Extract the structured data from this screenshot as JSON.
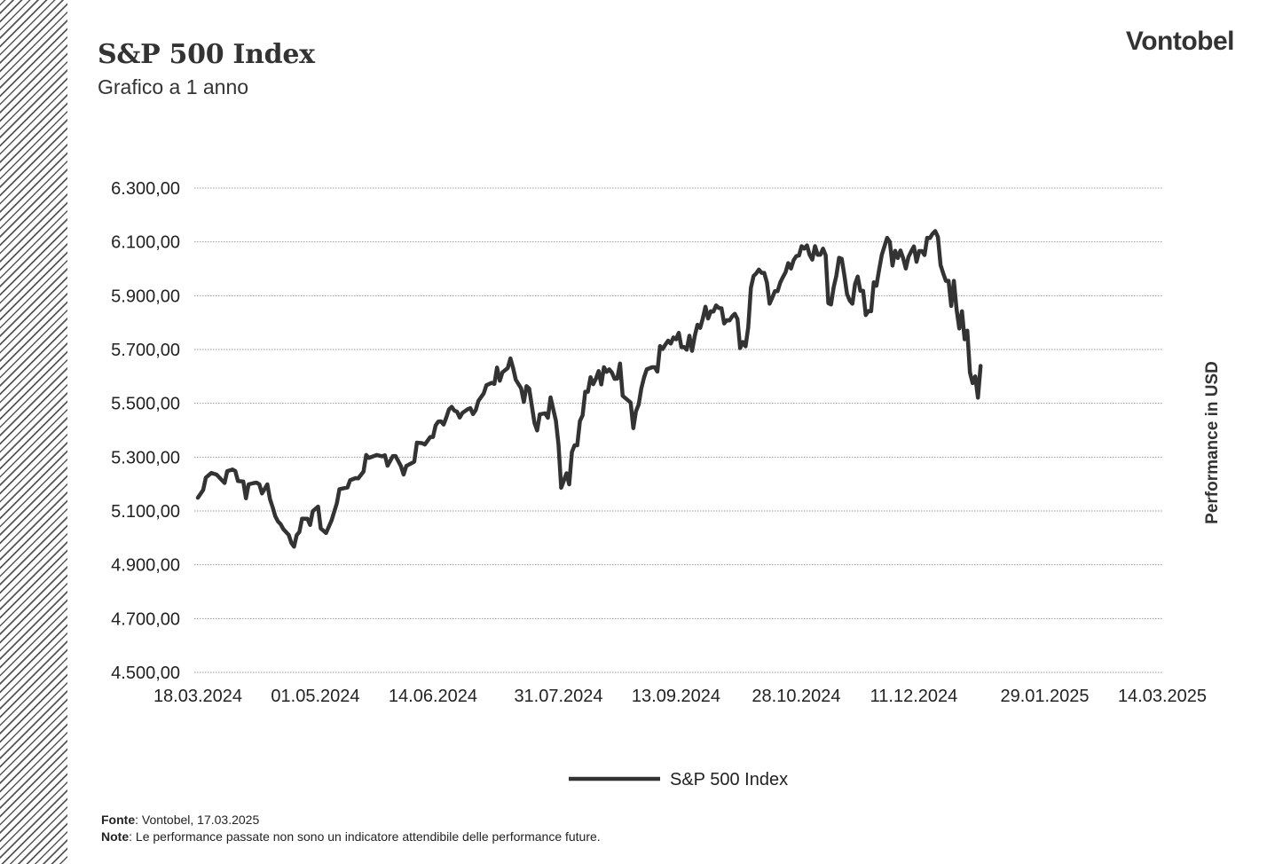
{
  "header": {
    "title": "S&P 500 Index",
    "subtitle": "Grafico a 1 anno",
    "brand": "Vontobel"
  },
  "footer": {
    "source_label": "Fonte",
    "source_text": ": Vontobel, 17.03.2025",
    "note_label": "Note",
    "note_text": ": Le performance passate non sono un indicatore attendibile delle performance future."
  },
  "colors": {
    "line": "#333333",
    "grid": "#9a9a9a",
    "text": "#222222"
  },
  "chart_data": {
    "type": "line",
    "title": "S&P 500 Index",
    "xlabel": "",
    "ylabel": "Performance in USD",
    "ylim": [
      4500,
      6300
    ],
    "y_ticks": [
      4500,
      4700,
      4900,
      5100,
      5300,
      5500,
      5700,
      5900,
      6100,
      6300
    ],
    "y_tick_labels": [
      "4.500,00",
      "4.700,00",
      "4.900,00",
      "5.100,00",
      "5.300,00",
      "5.500,00",
      "5.700,00",
      "5.900,00",
      "6.100,00",
      "6.300,00"
    ],
    "x_tick_labels": [
      "18.03.2024",
      "01.05.2024",
      "14.06.2024",
      "31.07.2024",
      "13.09.2024",
      "28.10.2024",
      "11.12.2024",
      "29.01.2025",
      "14.03.2025"
    ],
    "x_ticks_day": [
      0,
      44,
      88,
      135,
      179,
      224,
      268,
      317,
      361
    ],
    "grid": true,
    "legend": {
      "position": "bottom-center",
      "entries": [
        "S&P 500 Index"
      ]
    },
    "series": [
      {
        "name": "S&P 500 Index",
        "points": [
          [
            0,
            5149
          ],
          [
            2,
            5178
          ],
          [
            3,
            5224
          ],
          [
            5,
            5241
          ],
          [
            7,
            5235
          ],
          [
            10,
            5204
          ],
          [
            11,
            5248
          ],
          [
            13,
            5254
          ],
          [
            14,
            5248
          ],
          [
            15,
            5211
          ],
          [
            17,
            5209
          ],
          [
            18,
            5147
          ],
          [
            19,
            5199
          ],
          [
            21,
            5204
          ],
          [
            22,
            5205
          ],
          [
            23,
            5199
          ],
          [
            24,
            5165
          ],
          [
            26,
            5199
          ],
          [
            27,
            5144
          ],
          [
            28,
            5114
          ],
          [
            29,
            5080
          ],
          [
            30,
            5061
          ],
          [
            31,
            5051
          ],
          [
            32,
            5032
          ],
          [
            34,
            5011
          ],
          [
            35,
            4981
          ],
          [
            36,
            4967
          ],
          [
            37,
            5010
          ],
          [
            38,
            5022
          ],
          [
            39,
            5071
          ],
          [
            41,
            5071
          ],
          [
            42,
            5048
          ],
          [
            43,
            5099
          ],
          [
            45,
            5116
          ],
          [
            46,
            5035
          ],
          [
            48,
            5018
          ],
          [
            50,
            5064
          ],
          [
            52,
            5128
          ],
          [
            53,
            5181
          ],
          [
            56,
            5187
          ],
          [
            57,
            5214
          ],
          [
            59,
            5222
          ],
          [
            60,
            5221
          ],
          [
            62,
            5246
          ],
          [
            63,
            5308
          ],
          [
            64,
            5297
          ],
          [
            67,
            5308
          ],
          [
            69,
            5303
          ],
          [
            70,
            5307
          ],
          [
            71,
            5268
          ],
          [
            73,
            5304
          ],
          [
            74,
            5304
          ],
          [
            76,
            5267
          ],
          [
            77,
            5235
          ],
          [
            78,
            5267
          ],
          [
            81,
            5283
          ],
          [
            82,
            5354
          ],
          [
            84,
            5352
          ],
          [
            85,
            5347
          ],
          [
            87,
            5375
          ],
          [
            88,
            5375
          ],
          [
            89,
            5418
          ],
          [
            90,
            5432
          ],
          [
            91,
            5433
          ],
          [
            92,
            5421
          ],
          [
            93,
            5447
          ],
          [
            94,
            5477
          ],
          [
            95,
            5487
          ],
          [
            96,
            5473
          ],
          [
            97,
            5469
          ],
          [
            98,
            5447
          ],
          [
            99,
            5464
          ],
          [
            101,
            5478
          ],
          [
            102,
            5482
          ],
          [
            103,
            5460
          ],
          [
            104,
            5475
          ],
          [
            105,
            5509
          ],
          [
            107,
            5537
          ],
          [
            108,
            5567
          ],
          [
            110,
            5576
          ],
          [
            111,
            5572
          ],
          [
            112,
            5633
          ],
          [
            113,
            5584
          ],
          [
            114,
            5615
          ],
          [
            116,
            5631
          ],
          [
            117,
            5667
          ],
          [
            118,
            5631
          ],
          [
            119,
            5588
          ],
          [
            121,
            5556
          ],
          [
            122,
            5505
          ],
          [
            123,
            5564
          ],
          [
            124,
            5555
          ],
          [
            126,
            5427
          ],
          [
            127,
            5399
          ],
          [
            128,
            5459
          ],
          [
            130,
            5463
          ],
          [
            131,
            5446
          ],
          [
            132,
            5522
          ],
          [
            134,
            5436
          ],
          [
            135,
            5346
          ],
          [
            136,
            5186
          ],
          [
            138,
            5240
          ],
          [
            139,
            5199
          ],
          [
            140,
            5319
          ],
          [
            141,
            5344
          ],
          [
            142,
            5344
          ],
          [
            143,
            5434
          ],
          [
            144,
            5455
          ],
          [
            145,
            5543
          ],
          [
            146,
            5543
          ],
          [
            147,
            5597
          ],
          [
            148,
            5571
          ],
          [
            149,
            5592
          ],
          [
            150,
            5620
          ],
          [
            151,
            5570
          ],
          [
            152,
            5634
          ],
          [
            153,
            5617
          ],
          [
            154,
            5626
          ],
          [
            155,
            5614
          ],
          [
            156,
            5591
          ],
          [
            157,
            5592
          ],
          [
            158,
            5648
          ],
          [
            159,
            5528
          ],
          [
            162,
            5503
          ],
          [
            163,
            5408
          ],
          [
            164,
            5471
          ],
          [
            165,
            5495
          ],
          [
            166,
            5555
          ],
          [
            167,
            5596
          ],
          [
            168,
            5626
          ],
          [
            170,
            5634
          ],
          [
            171,
            5634
          ],
          [
            172,
            5618
          ],
          [
            173,
            5713
          ],
          [
            174,
            5702
          ],
          [
            175,
            5718
          ],
          [
            176,
            5733
          ],
          [
            177,
            5722
          ],
          [
            178,
            5745
          ],
          [
            179,
            5738
          ],
          [
            180,
            5762
          ],
          [
            181,
            5709
          ],
          [
            182,
            5709
          ],
          [
            183,
            5699
          ],
          [
            184,
            5751
          ],
          [
            185,
            5695
          ],
          [
            186,
            5751
          ],
          [
            187,
            5792
          ],
          [
            188,
            5780
          ],
          [
            189,
            5815
          ],
          [
            190,
            5859
          ],
          [
            191,
            5815
          ],
          [
            192,
            5842
          ],
          [
            193,
            5841
          ],
          [
            194,
            5864
          ],
          [
            195,
            5854
          ],
          [
            196,
            5853
          ],
          [
            197,
            5797
          ],
          [
            198,
            5809
          ],
          [
            199,
            5808
          ],
          [
            200,
            5823
          ],
          [
            201,
            5833
          ],
          [
            202,
            5813
          ],
          [
            203,
            5705
          ],
          [
            204,
            5728
          ],
          [
            205,
            5712
          ],
          [
            206,
            5782
          ],
          [
            207,
            5929
          ],
          [
            208,
            5973
          ],
          [
            209,
            5983
          ],
          [
            210,
            5997
          ],
          [
            211,
            5985
          ],
          [
            212,
            5985
          ],
          [
            213,
            5949
          ],
          [
            214,
            5870
          ],
          [
            215,
            5893
          ],
          [
            216,
            5917
          ],
          [
            217,
            5917
          ],
          [
            218,
            5949
          ],
          [
            219,
            5969
          ],
          [
            220,
            5987
          ],
          [
            221,
            6021
          ],
          [
            222,
            6001
          ],
          [
            223,
            6032
          ],
          [
            224,
            6047
          ],
          [
            225,
            6049
          ],
          [
            226,
            6084
          ],
          [
            227,
            6075
          ],
          [
            228,
            6087
          ],
          [
            229,
            6052
          ],
          [
            230,
            6034
          ],
          [
            231,
            6084
          ],
          [
            232,
            6052
          ],
          [
            233,
            6052
          ],
          [
            234,
            6075
          ],
          [
            235,
            6050
          ],
          [
            236,
            5872
          ],
          [
            237,
            5867
          ],
          [
            238,
            5931
          ],
          [
            239,
            5974
          ],
          [
            240,
            6041
          ],
          [
            241,
            6037
          ],
          [
            242,
            5975
          ],
          [
            243,
            5906
          ],
          [
            244,
            5882
          ],
          [
            245,
            5870
          ],
          [
            246,
            5943
          ],
          [
            247,
            5971
          ],
          [
            248,
            5918
          ],
          [
            249,
            5918
          ],
          [
            250,
            5828
          ],
          [
            251,
            5843
          ],
          [
            252,
            5842
          ],
          [
            253,
            5950
          ],
          [
            254,
            5937
          ],
          [
            255,
            5996
          ],
          [
            256,
            6051
          ],
          [
            257,
            6083
          ],
          [
            258,
            6115
          ],
          [
            259,
            6100
          ],
          [
            260,
            6012
          ],
          [
            261,
            6067
          ],
          [
            262,
            6040
          ],
          [
            263,
            6068
          ],
          [
            264,
            6040
          ],
          [
            265,
            6001
          ],
          [
            266,
            6044
          ],
          [
            267,
            6065
          ],
          [
            268,
            6083
          ],
          [
            269,
            6026
          ],
          [
            270,
            6066
          ],
          [
            271,
            6066
          ],
          [
            272,
            6051
          ],
          [
            273,
            6115
          ],
          [
            274,
            6114
          ],
          [
            275,
            6130
          ],
          [
            276,
            6140
          ],
          [
            277,
            6118
          ],
          [
            278,
            6014
          ],
          [
            279,
            5983
          ],
          [
            280,
            5955
          ],
          [
            281,
            5955
          ],
          [
            282,
            5862
          ],
          [
            283,
            5955
          ],
          [
            284,
            5850
          ],
          [
            285,
            5778
          ],
          [
            286,
            5842
          ],
          [
            287,
            5738
          ],
          [
            288,
            5770
          ],
          [
            289,
            5615
          ],
          [
            290,
            5575
          ],
          [
            291,
            5600
          ],
          [
            292,
            5521
          ],
          [
            293,
            5639
          ]
        ]
      }
    ]
  }
}
